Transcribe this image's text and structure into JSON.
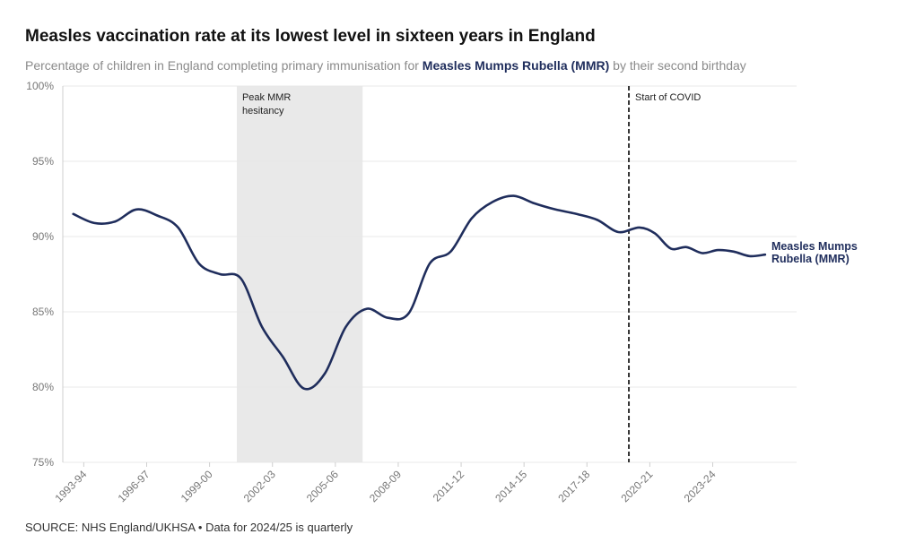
{
  "title": "Measles vaccination rate at its lowest level in sixteen years in England",
  "subtitle": {
    "prefix": "Percentage of children in England completing primary immunisation for ",
    "highlight": "Measles Mumps Rubella (MMR)",
    "suffix": " by their second birthday"
  },
  "source": "SOURCE: NHS England/UKHSA • Data for 2024/25 is quarterly",
  "colors": {
    "line": "#1f2d5c",
    "shade": "#e9e9e9",
    "grid": "#e8e8e8",
    "axis": "#cfcfcf"
  },
  "chart_data": {
    "type": "line",
    "title": "Measles vaccination rate at its lowest level in sixteen years in England",
    "xlabel": "",
    "ylabel": "",
    "xlim": [
      1993.0,
      2028.0
    ],
    "ylim": [
      75,
      100
    ],
    "y_ticks": [
      75,
      80,
      85,
      90,
      95,
      100
    ],
    "y_tick_labels": [
      "75%",
      "80%",
      "85%",
      "90%",
      "95%",
      "100%"
    ],
    "x_ticks": [
      1994,
      1997,
      2000,
      2003,
      2006,
      2009,
      2012,
      2015,
      2018,
      2021,
      2024
    ],
    "x_tick_labels": [
      "1993-94",
      "1996-97",
      "1999-00",
      "2002-03",
      "2005-06",
      "2008-09",
      "2011-12",
      "2014-15",
      "2017-18",
      "2020-21",
      "2023-24"
    ],
    "grid": true,
    "series": [
      {
        "name": "Measles Mumps Rubella (MMR)",
        "x": [
          1993.5,
          1994.5,
          1995.5,
          1996.5,
          1997.5,
          1998.5,
          1999.5,
          2000.5,
          2001.5,
          2002.5,
          2003.5,
          2004.5,
          2005.5,
          2006.5,
          2007.5,
          2008.5,
          2009.5,
          2010.5,
          2011.5,
          2012.5,
          2013.5,
          2014.5,
          2015.5,
          2016.5,
          2017.5,
          2018.5,
          2019.5,
          2020.5,
          2021.25,
          2022.0,
          2022.75,
          2023.5,
          2024.25,
          2025.0,
          2025.75,
          2026.5
        ],
        "values": [
          91.5,
          90.9,
          91.0,
          91.8,
          91.4,
          90.6,
          88.2,
          87.5,
          87.2,
          84.0,
          82.0,
          79.9,
          80.9,
          84.0,
          85.2,
          84.6,
          84.9,
          88.2,
          89.0,
          91.2,
          92.3,
          92.7,
          92.2,
          91.8,
          91.5,
          91.1,
          90.3,
          90.6,
          90.2,
          89.2,
          89.3,
          88.9,
          89.1,
          89.0,
          88.7,
          88.8
        ]
      }
    ],
    "annotations": [
      {
        "type": "shaded_span",
        "x_start": 2001.3,
        "x_end": 2007.3,
        "text_lines": [
          "Peak MMR",
          "hesitancy"
        ]
      },
      {
        "type": "vline",
        "x": 2020.0,
        "dashed": true,
        "text": "Start of COVID"
      }
    ],
    "series_label_lines": [
      "Measles Mumps",
      "Rubella (MMR)"
    ]
  }
}
